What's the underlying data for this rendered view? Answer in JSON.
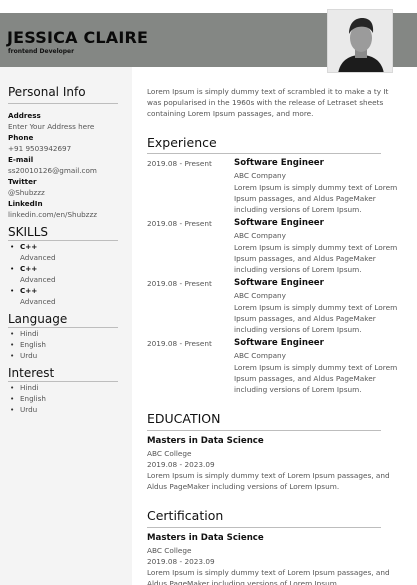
{
  "header": {
    "name": "JESSICA CLAIRE",
    "role": "frontend Developer"
  },
  "personal_info": {
    "title": "Personal Info",
    "fields": [
      {
        "label": "Address",
        "value": "Enter Your Address here"
      },
      {
        "label": "Phone",
        "value": "+91 9503942697"
      },
      {
        "label": "E-mail",
        "value": "ss20010126@gmail.com"
      },
      {
        "label": "Twitter",
        "value": "@Shubzzz"
      },
      {
        "label": "LinkedIn",
        "value": "linkedin.com/en/Shubzzz"
      }
    ]
  },
  "skills": {
    "title": "SKILLS",
    "items": [
      {
        "name": "C++",
        "level": "Advanced"
      },
      {
        "name": "C++",
        "level": "Advanced"
      },
      {
        "name": "C++",
        "level": "Advanced"
      }
    ]
  },
  "language": {
    "title": "Language",
    "items": [
      "Hindi",
      "English",
      "Urdu"
    ]
  },
  "interest": {
    "title": "Interest",
    "items": [
      "Hindi",
      "English",
      "Urdu"
    ]
  },
  "summary": "Lorem Ipsum is simply dummy text of scrambled it to make a ty It was popularised in the 1960s with the release of Letraset sheets containing Lorem Ipsum passages, and more.",
  "experience": {
    "title": "Experience",
    "items": [
      {
        "date": "2019.08 - Present",
        "title": "Software Engineer",
        "company": "ABC Company",
        "desc": "Lorem Ipsum is simply dummy text of Lorem Ipsum passages, and Aldus PageMaker including versions of Lorem Ipsum."
      },
      {
        "date": "2019.08 - Present",
        "title": "Software Engineer",
        "company": "ABC Company",
        "desc": "Lorem Ipsum is simply dummy text of Lorem Ipsum passages, and Aldus PageMaker including versions of Lorem Ipsum."
      },
      {
        "date": "2019.08 - Present",
        "title": "Software Engineer",
        "company": "ABC Company",
        "desc": "Lorem Ipsum is simply dummy text of Lorem Ipsum passages, and Aldus PageMaker including versions of Lorem Ipsum."
      },
      {
        "date": "2019.08 - Present",
        "title": "Software Engineer",
        "company": "ABC Company",
        "desc": "Lorem Ipsum is simply dummy text of Lorem Ipsum passages, and Aldus PageMaker including versions of Lorem Ipsum."
      }
    ]
  },
  "education": {
    "title": "EDUCATION",
    "degree": "Masters in Data Science",
    "school": "ABC College",
    "dates": "2019.08 - 2023.09",
    "desc": "Lorem Ipsum is simply dummy text of Lorem Ipsum passages, and Aldus PageMaker including versions of Lorem Ipsum."
  },
  "certification": {
    "title": "Certification",
    "degree": "Masters in Data Science",
    "school": "ABC College",
    "dates": "2019.08 - 2023.09",
    "desc": "Lorem Ipsum is simply dummy text of Lorem Ipsum passages, and Aldus PageMaker including versions of Lorem Ipsum."
  },
  "colors": {
    "header_band": "#848784",
    "sidebar_bg": "#f4f4f4"
  }
}
